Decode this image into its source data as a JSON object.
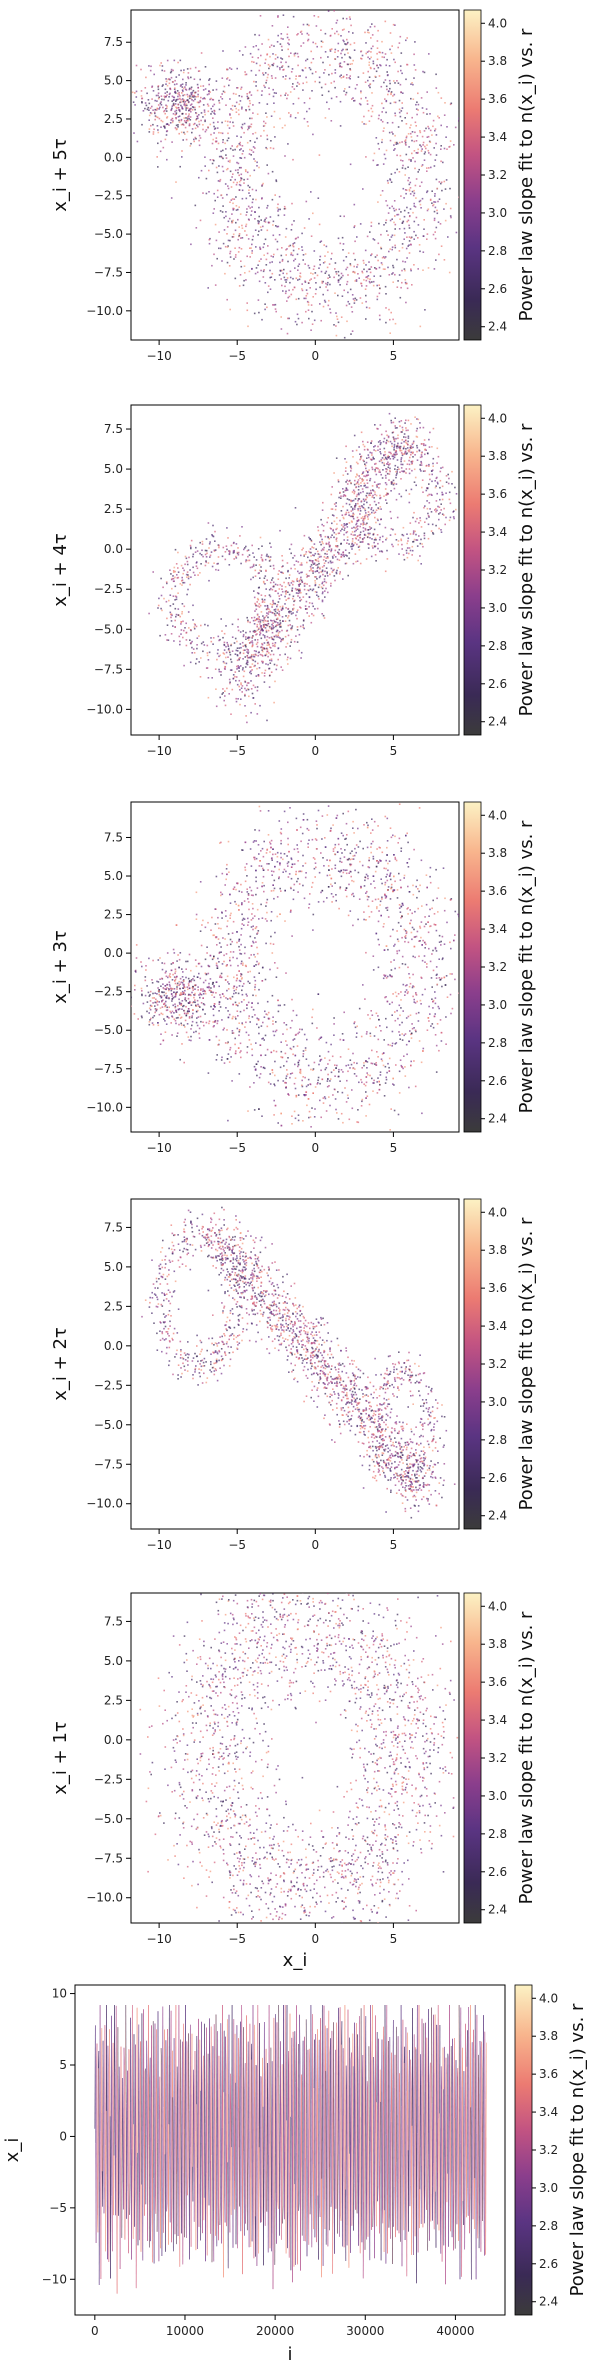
{
  "chart_data": [
    {
      "type": "scatter",
      "ylabel": "x_i + 5τ",
      "xlabel": "",
      "xticks": [
        "−10",
        "−5",
        "0",
        "5"
      ],
      "xtick_values": [
        -10,
        -5,
        0,
        5
      ],
      "yticks": [
        "7.5",
        "5.0",
        "2.5",
        "0.0",
        "−2.5",
        "−5.0",
        "−7.5",
        "−10.0"
      ],
      "ytick_values": [
        7.5,
        5.0,
        2.5,
        0.0,
        -2.5,
        -5.0,
        -7.5,
        -10.0
      ],
      "xlim": [
        -11.8,
        9.2
      ],
      "ylim": [
        -11.9,
        9.6
      ],
      "attractor_shape": "loop-lobe",
      "colorbar": {
        "label": "Power law slope fit to n(x_i) vs. r",
        "ticks": [
          "4.0",
          "3.8",
          "3.6",
          "3.4",
          "3.2",
          "3.0",
          "2.8",
          "2.6",
          "2.4"
        ],
        "range": [
          2.33,
          4.07
        ],
        "colormap": "magma"
      }
    },
    {
      "type": "scatter",
      "ylabel": "x_i + 4τ",
      "xlabel": "",
      "xticks": [
        "−10",
        "−5",
        "0",
        "5"
      ],
      "xtick_values": [
        -10,
        -5,
        0,
        5
      ],
      "yticks": [
        "7.5",
        "5.0",
        "2.5",
        "0.0",
        "−2.5",
        "−5.0",
        "−7.5",
        "−10.0"
      ],
      "ytick_values": [
        7.5,
        5.0,
        2.5,
        0.0,
        -2.5,
        -5.0,
        -7.5,
        -10.0
      ],
      "xlim": [
        -11.8,
        9.2
      ],
      "ylim": [
        -11.6,
        9.0
      ],
      "attractor_shape": "diagonal-up",
      "colorbar": {
        "label": "Power law slope fit to n(x_i) vs. r",
        "ticks": [
          "4.0",
          "3.8",
          "3.6",
          "3.4",
          "3.2",
          "3.0",
          "2.8",
          "2.6",
          "2.4"
        ],
        "range": [
          2.33,
          4.07
        ],
        "colormap": "magma"
      }
    },
    {
      "type": "scatter",
      "ylabel": "x_i + 3τ",
      "xlabel": "",
      "xticks": [
        "−10",
        "−5",
        "0",
        "5"
      ],
      "xtick_values": [
        -10,
        -5,
        0,
        5
      ],
      "yticks": [
        "7.5",
        "5.0",
        "2.5",
        "0.0",
        "−2.5",
        "−5.0",
        "−7.5",
        "−10.0"
      ],
      "ytick_values": [
        7.5,
        5.0,
        2.5,
        0.0,
        -2.5,
        -5.0,
        -7.5,
        -10.0
      ],
      "xlim": [
        -11.8,
        9.2
      ],
      "ylim": [
        -11.6,
        9.8
      ],
      "attractor_shape": "ring-lobe",
      "colorbar": {
        "label": "Power law slope fit to n(x_i) vs. r",
        "ticks": [
          "4.0",
          "3.8",
          "3.6",
          "3.4",
          "3.2",
          "3.0",
          "2.8",
          "2.6",
          "2.4"
        ],
        "range": [
          2.33,
          4.07
        ],
        "colormap": "magma"
      }
    },
    {
      "type": "scatter",
      "ylabel": "x_i + 2τ",
      "xlabel": "",
      "xticks": [
        "−10",
        "−5",
        "0",
        "5"
      ],
      "xtick_values": [
        -10,
        -5,
        0,
        5
      ],
      "yticks": [
        "7.5",
        "5.0",
        "2.5",
        "0.0",
        "−2.5",
        "−5.0",
        "−7.5",
        "−10.0"
      ],
      "ytick_values": [
        7.5,
        5.0,
        2.5,
        0.0,
        -2.5,
        -5.0,
        -7.5,
        -10.0
      ],
      "xlim": [
        -11.8,
        9.2
      ],
      "ylim": [
        -11.6,
        9.3
      ],
      "attractor_shape": "diagonal-down",
      "colorbar": {
        "label": "Power law slope fit to n(x_i) vs. r",
        "ticks": [
          "4.0",
          "3.8",
          "3.6",
          "3.4",
          "3.2",
          "3.0",
          "2.8",
          "2.6",
          "2.4"
        ],
        "range": [
          2.33,
          4.07
        ],
        "colormap": "magma"
      }
    },
    {
      "type": "scatter",
      "ylabel": "x_i + 1τ",
      "xlabel": "x_i",
      "xticks": [
        "−10",
        "−5",
        "0",
        "5"
      ],
      "xtick_values": [
        -10,
        -5,
        0,
        5
      ],
      "yticks": [
        "7.5",
        "5.0",
        "2.5",
        "0.0",
        "−2.5",
        "−5.0",
        "−7.5",
        "−10.0"
      ],
      "ytick_values": [
        7.5,
        5.0,
        2.5,
        0.0,
        -2.5,
        -5.0,
        -7.5,
        -10.0
      ],
      "xlim": [
        -11.8,
        9.2
      ],
      "ylim": [
        -11.6,
        9.3
      ],
      "attractor_shape": "ring",
      "colorbar": {
        "label": "Power law slope fit to n(x_i) vs. r",
        "ticks": [
          "4.0",
          "3.8",
          "3.6",
          "3.4",
          "3.2",
          "3.0",
          "2.8",
          "2.6",
          "2.4"
        ],
        "range": [
          2.33,
          4.07
        ],
        "colormap": "magma"
      }
    },
    {
      "type": "line",
      "ylabel": "x_i",
      "xlabel": "i",
      "xticks": [
        "0",
        "10000",
        "20000",
        "30000",
        "40000"
      ],
      "xtick_values": [
        0,
        10000,
        20000,
        30000,
        40000
      ],
      "yticks": [
        "10",
        "5",
        "0",
        "−5",
        "−10"
      ],
      "ytick_values": [
        10,
        5,
        0,
        -5,
        -10
      ],
      "xlim": [
        -2200,
        45500
      ],
      "ylim": [
        -12.5,
        10.6
      ],
      "n_points": 43500,
      "colorbar": {
        "label": "Power law slope fit to n(x_i) vs. r",
        "ticks": [
          "4.0",
          "3.8",
          "3.6",
          "3.4",
          "3.2",
          "3.0",
          "2.8",
          "2.6",
          "2.4"
        ],
        "range": [
          2.33,
          4.07
        ],
        "colormap": "magma"
      }
    }
  ]
}
